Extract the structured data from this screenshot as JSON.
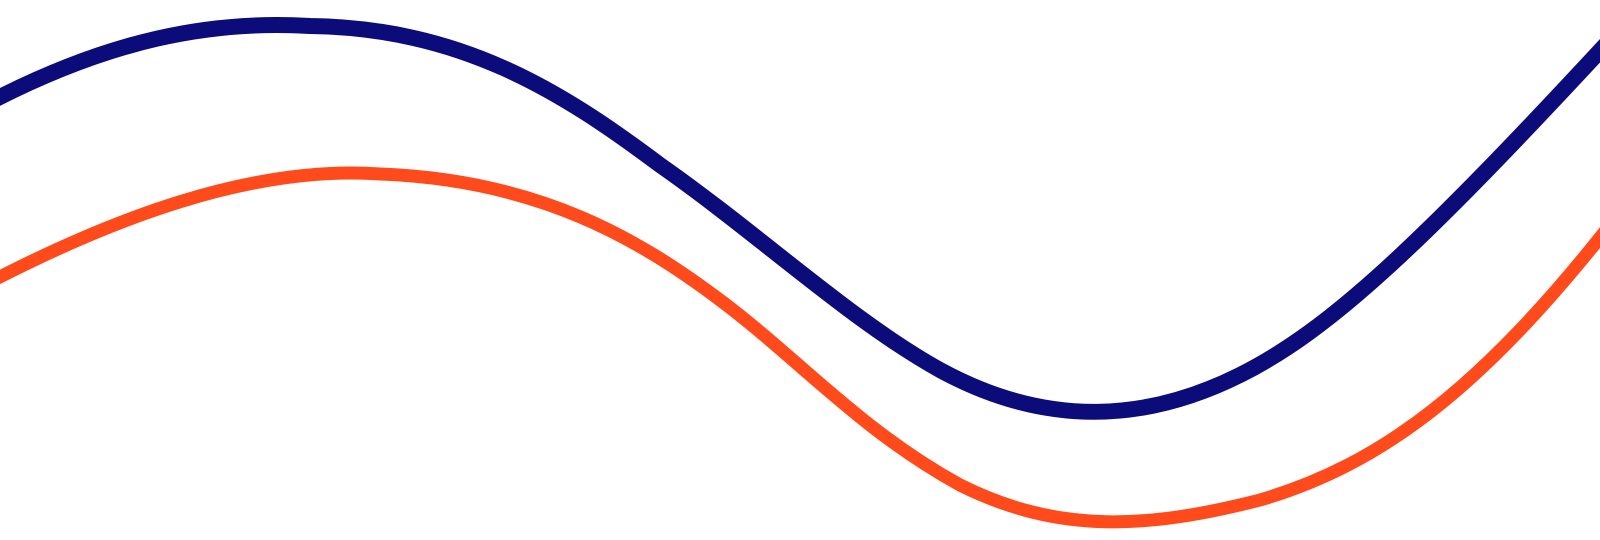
{
  "graphic": {
    "background": "#ffffff",
    "waves": [
      {
        "name": "navy-wave",
        "color": "#0b0b7a"
      },
      {
        "name": "orange-wave",
        "color": "#ff4a1c"
      }
    ]
  }
}
